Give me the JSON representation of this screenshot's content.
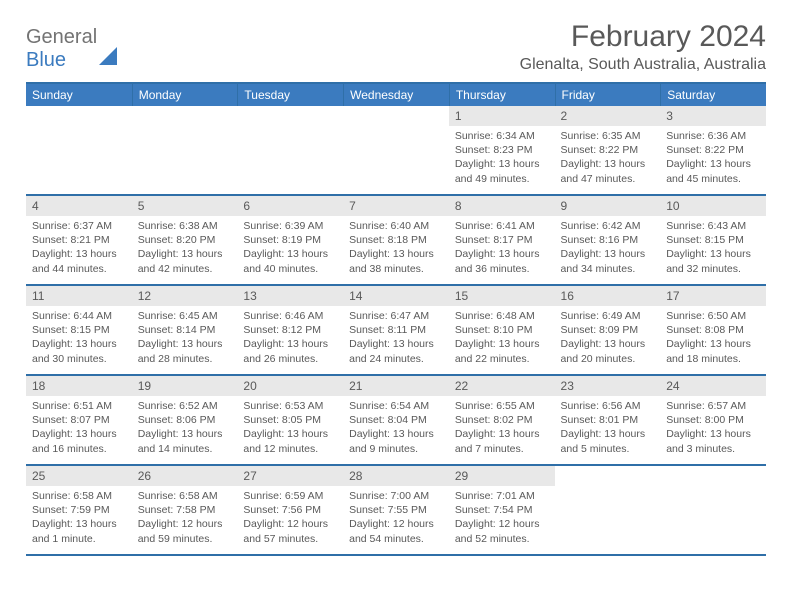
{
  "brand": {
    "part1": "General",
    "part2": "Blue"
  },
  "title": "February 2024",
  "subtitle": "Glenalta, South Australia, Australia",
  "colors": {
    "header_bg": "#3b7bbf",
    "header_border": "#2f6fa8",
    "daynum_bg": "#e8e8e8",
    "text": "#595959",
    "page_bg": "#ffffff"
  },
  "typography": {
    "title_fontsize_pt": 22,
    "subtitle_fontsize_pt": 12,
    "header_cell_fontsize_pt": 9,
    "body_fontsize_pt": 8,
    "font_family": "Arial"
  },
  "calendar": {
    "columns": [
      "Sunday",
      "Monday",
      "Tuesday",
      "Wednesday",
      "Thursday",
      "Friday",
      "Saturday"
    ],
    "weeks": [
      [
        null,
        null,
        null,
        null,
        {
          "n": "1",
          "sr": "Sunrise: 6:34 AM",
          "ss": "Sunset: 8:23 PM",
          "dl": "Daylight: 13 hours and 49 minutes."
        },
        {
          "n": "2",
          "sr": "Sunrise: 6:35 AM",
          "ss": "Sunset: 8:22 PM",
          "dl": "Daylight: 13 hours and 47 minutes."
        },
        {
          "n": "3",
          "sr": "Sunrise: 6:36 AM",
          "ss": "Sunset: 8:22 PM",
          "dl": "Daylight: 13 hours and 45 minutes."
        }
      ],
      [
        {
          "n": "4",
          "sr": "Sunrise: 6:37 AM",
          "ss": "Sunset: 8:21 PM",
          "dl": "Daylight: 13 hours and 44 minutes."
        },
        {
          "n": "5",
          "sr": "Sunrise: 6:38 AM",
          "ss": "Sunset: 8:20 PM",
          "dl": "Daylight: 13 hours and 42 minutes."
        },
        {
          "n": "6",
          "sr": "Sunrise: 6:39 AM",
          "ss": "Sunset: 8:19 PM",
          "dl": "Daylight: 13 hours and 40 minutes."
        },
        {
          "n": "7",
          "sr": "Sunrise: 6:40 AM",
          "ss": "Sunset: 8:18 PM",
          "dl": "Daylight: 13 hours and 38 minutes."
        },
        {
          "n": "8",
          "sr": "Sunrise: 6:41 AM",
          "ss": "Sunset: 8:17 PM",
          "dl": "Daylight: 13 hours and 36 minutes."
        },
        {
          "n": "9",
          "sr": "Sunrise: 6:42 AM",
          "ss": "Sunset: 8:16 PM",
          "dl": "Daylight: 13 hours and 34 minutes."
        },
        {
          "n": "10",
          "sr": "Sunrise: 6:43 AM",
          "ss": "Sunset: 8:15 PM",
          "dl": "Daylight: 13 hours and 32 minutes."
        }
      ],
      [
        {
          "n": "11",
          "sr": "Sunrise: 6:44 AM",
          "ss": "Sunset: 8:15 PM",
          "dl": "Daylight: 13 hours and 30 minutes."
        },
        {
          "n": "12",
          "sr": "Sunrise: 6:45 AM",
          "ss": "Sunset: 8:14 PM",
          "dl": "Daylight: 13 hours and 28 minutes."
        },
        {
          "n": "13",
          "sr": "Sunrise: 6:46 AM",
          "ss": "Sunset: 8:12 PM",
          "dl": "Daylight: 13 hours and 26 minutes."
        },
        {
          "n": "14",
          "sr": "Sunrise: 6:47 AM",
          "ss": "Sunset: 8:11 PM",
          "dl": "Daylight: 13 hours and 24 minutes."
        },
        {
          "n": "15",
          "sr": "Sunrise: 6:48 AM",
          "ss": "Sunset: 8:10 PM",
          "dl": "Daylight: 13 hours and 22 minutes."
        },
        {
          "n": "16",
          "sr": "Sunrise: 6:49 AM",
          "ss": "Sunset: 8:09 PM",
          "dl": "Daylight: 13 hours and 20 minutes."
        },
        {
          "n": "17",
          "sr": "Sunrise: 6:50 AM",
          "ss": "Sunset: 8:08 PM",
          "dl": "Daylight: 13 hours and 18 minutes."
        }
      ],
      [
        {
          "n": "18",
          "sr": "Sunrise: 6:51 AM",
          "ss": "Sunset: 8:07 PM",
          "dl": "Daylight: 13 hours and 16 minutes."
        },
        {
          "n": "19",
          "sr": "Sunrise: 6:52 AM",
          "ss": "Sunset: 8:06 PM",
          "dl": "Daylight: 13 hours and 14 minutes."
        },
        {
          "n": "20",
          "sr": "Sunrise: 6:53 AM",
          "ss": "Sunset: 8:05 PM",
          "dl": "Daylight: 13 hours and 12 minutes."
        },
        {
          "n": "21",
          "sr": "Sunrise: 6:54 AM",
          "ss": "Sunset: 8:04 PM",
          "dl": "Daylight: 13 hours and 9 minutes."
        },
        {
          "n": "22",
          "sr": "Sunrise: 6:55 AM",
          "ss": "Sunset: 8:02 PM",
          "dl": "Daylight: 13 hours and 7 minutes."
        },
        {
          "n": "23",
          "sr": "Sunrise: 6:56 AM",
          "ss": "Sunset: 8:01 PM",
          "dl": "Daylight: 13 hours and 5 minutes."
        },
        {
          "n": "24",
          "sr": "Sunrise: 6:57 AM",
          "ss": "Sunset: 8:00 PM",
          "dl": "Daylight: 13 hours and 3 minutes."
        }
      ],
      [
        {
          "n": "25",
          "sr": "Sunrise: 6:58 AM",
          "ss": "Sunset: 7:59 PM",
          "dl": "Daylight: 13 hours and 1 minute."
        },
        {
          "n": "26",
          "sr": "Sunrise: 6:58 AM",
          "ss": "Sunset: 7:58 PM",
          "dl": "Daylight: 12 hours and 59 minutes."
        },
        {
          "n": "27",
          "sr": "Sunrise: 6:59 AM",
          "ss": "Sunset: 7:56 PM",
          "dl": "Daylight: 12 hours and 57 minutes."
        },
        {
          "n": "28",
          "sr": "Sunrise: 7:00 AM",
          "ss": "Sunset: 7:55 PM",
          "dl": "Daylight: 12 hours and 54 minutes."
        },
        {
          "n": "29",
          "sr": "Sunrise: 7:01 AM",
          "ss": "Sunset: 7:54 PM",
          "dl": "Daylight: 12 hours and 52 minutes."
        },
        null,
        null
      ]
    ]
  }
}
